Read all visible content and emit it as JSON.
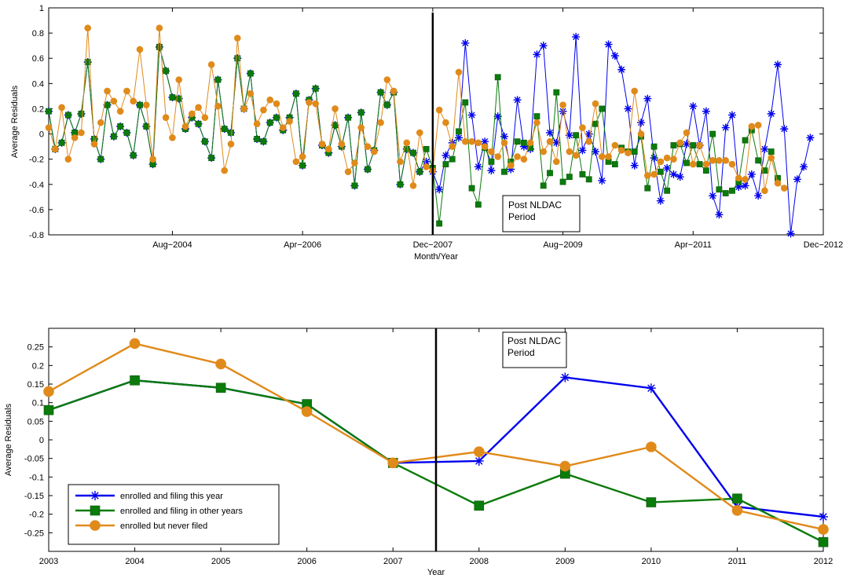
{
  "chart_data": [
    {
      "type": "line",
      "xlabel": "Month/Year",
      "ylabel": "Average Residuals",
      "ylim": [
        -0.8,
        1
      ],
      "yticks": [
        "-0.8",
        "-0.6",
        "-0.4",
        "-0.2",
        "0",
        "0.2",
        "0.4",
        "0.6",
        "0.8",
        "1"
      ],
      "x_range_months": [
        "2003-01",
        "2012-12"
      ],
      "xticks": [
        {
          "label": "Aug−2004",
          "month": "2004-08"
        },
        {
          "label": "Apr−2006",
          "month": "2006-04"
        },
        {
          "label": "Dec−2007",
          "month": "2007-12"
        },
        {
          "label": "Aug−2009",
          "month": "2009-08"
        },
        {
          "label": "Apr−2011",
          "month": "2011-04"
        },
        {
          "label": "Dec−2012",
          "month": "2012-12"
        }
      ],
      "vline_month": "2007-12",
      "annotation": [
        "Post NLDAC",
        "Period"
      ],
      "start_month": "2003-01",
      "series": [
        {
          "name": "enrolled and filing this year",
          "color": "#0000ee",
          "marker": "asterisk",
          "values": [
            0.18,
            -0.12,
            -0.07,
            0.15,
            0.01,
            0.16,
            0.57,
            -0.04,
            -0.2,
            0.23,
            -0.02,
            0.06,
            0.01,
            -0.17,
            0.23,
            0.06,
            -0.24,
            0.69,
            0.5,
            0.29,
            0.28,
            0.04,
            0.13,
            0.08,
            -0.06,
            -0.19,
            0.43,
            0.04,
            0.01,
            0.6,
            0.2,
            0.48,
            -0.04,
            -0.06,
            0.09,
            0.13,
            0.03,
            0.13,
            0.32,
            -0.25,
            0.27,
            0.36,
            -0.09,
            -0.15,
            0.07,
            -0.1,
            0.13,
            -0.41,
            0.17,
            -0.28,
            -0.13,
            0.33,
            0.23,
            0.33,
            -0.4,
            -0.12,
            -0.15,
            -0.3,
            -0.22,
            -0.3,
            -0.44,
            -0.17,
            -0.07,
            -0.03,
            0.72,
            0.15,
            -0.26,
            -0.06,
            -0.29,
            0.14,
            -0.02,
            -0.28,
            0.27,
            -0.1,
            -0.12,
            0.63,
            0.7,
            0.01,
            -0.07,
            0.18,
            -0.01,
            0.77,
            -0.13,
            0.0,
            -0.14,
            -0.37,
            0.71,
            0.62,
            0.51,
            0.2,
            -0.25,
            0.09,
            0.28,
            -0.19,
            -0.53,
            -0.27,
            -0.32,
            -0.34,
            -0.08,
            0.22,
            -0.09,
            0.18,
            -0.49,
            -0.64,
            0.05,
            0.15,
            -0.42,
            -0.41,
            -0.32,
            -0.49,
            -0.12,
            0.16,
            0.55,
            0.04,
            -0.79,
            -0.36,
            -0.26,
            -0.03
          ]
        },
        {
          "name": "enrolled and filing in other years",
          "color": "#0b7b0b",
          "marker": "square",
          "values": [
            0.18,
            -0.12,
            -0.07,
            0.15,
            0.01,
            0.16,
            0.57,
            -0.04,
            -0.2,
            0.23,
            -0.02,
            0.06,
            0.01,
            -0.17,
            0.23,
            0.06,
            -0.24,
            0.69,
            0.5,
            0.29,
            0.28,
            0.04,
            0.13,
            0.08,
            -0.06,
            -0.19,
            0.43,
            0.04,
            0.01,
            0.6,
            0.2,
            0.48,
            -0.04,
            -0.06,
            0.09,
            0.13,
            0.03,
            0.13,
            0.32,
            -0.25,
            0.27,
            0.36,
            -0.09,
            -0.15,
            0.07,
            -0.1,
            0.13,
            -0.41,
            0.17,
            -0.28,
            -0.13,
            0.33,
            0.23,
            0.33,
            -0.4,
            -0.12,
            -0.15,
            -0.3,
            -0.12,
            -0.27,
            -0.71,
            -0.24,
            -0.2,
            0.02,
            0.25,
            -0.43,
            -0.56,
            -0.11,
            -0.22,
            0.45,
            -0.3,
            -0.22,
            -0.06,
            -0.07,
            -0.11,
            0.14,
            -0.41,
            -0.31,
            0.33,
            -0.38,
            -0.34,
            -0.01,
            -0.32,
            -0.36,
            0.08,
            0.2,
            -0.22,
            -0.24,
            -0.11,
            -0.14,
            -0.14,
            -0.02,
            -0.43,
            -0.1,
            -0.3,
            -0.45,
            -0.09,
            -0.08,
            -0.23,
            -0.09,
            -0.24,
            -0.29,
            0.0,
            -0.44,
            -0.47,
            -0.45,
            -0.38,
            -0.05,
            0.03,
            -0.21,
            -0.29,
            -0.14,
            -0.35
          ]
        },
        {
          "name": "enrolled but never filed",
          "color": "#e08a1a",
          "marker": "circle",
          "values": [
            0.05,
            -0.12,
            0.21,
            -0.2,
            -0.03,
            0.01,
            0.84,
            -0.08,
            0.09,
            0.34,
            0.26,
            0.18,
            0.34,
            0.26,
            0.67,
            0.23,
            -0.2,
            0.84,
            0.13,
            -0.03,
            0.43,
            0.06,
            0.16,
            0.21,
            0.13,
            0.55,
            0.22,
            -0.29,
            -0.08,
            0.76,
            0.2,
            0.32,
            0.08,
            0.19,
            0.27,
            0.24,
            0.05,
            0.1,
            -0.22,
            -0.18,
            0.25,
            0.24,
            -0.08,
            -0.12,
            0.2,
            -0.08,
            -0.3,
            -0.23,
            0.05,
            -0.1,
            -0.14,
            0.09,
            0.43,
            0.34,
            -0.22,
            -0.07,
            -0.41,
            0.01,
            -0.26,
            -0.29,
            0.19,
            0.09,
            -0.1,
            0.49,
            -0.06,
            -0.06,
            -0.07,
            -0.1,
            -0.14,
            -0.18,
            -0.07,
            -0.25,
            -0.18,
            -0.2,
            -0.07,
            0.09,
            -0.14,
            -0.06,
            -0.22,
            0.23,
            -0.14,
            -0.17,
            0.05,
            -0.06,
            0.24,
            -0.18,
            -0.18,
            -0.09,
            -0.13,
            -0.15,
            0.34,
            0.0,
            -0.33,
            -0.32,
            -0.22,
            -0.19,
            -0.2,
            -0.07,
            0.01,
            -0.24,
            -0.09,
            -0.24,
            -0.21,
            -0.21,
            -0.21,
            -0.24,
            -0.35,
            -0.36,
            0.06,
            0.07,
            -0.45,
            -0.19,
            -0.39,
            -0.43
          ]
        }
      ]
    },
    {
      "type": "line",
      "xlabel": "Year",
      "ylabel": "Average Residuals",
      "ylim": [
        -0.3,
        0.3
      ],
      "yticks": [
        "-0.25",
        "-0.2",
        "-0.15",
        "-0.1",
        "-0.05",
        "0",
        "0.05",
        "0.1",
        "0.15",
        "0.2",
        "0.25"
      ],
      "categories": [
        "2003",
        "2004",
        "2005",
        "2006",
        "2007",
        "2008",
        "2009",
        "2010",
        "2011",
        "2012"
      ],
      "vline_x": 2007.5,
      "annotation": [
        "Post NLDAC",
        "Period"
      ],
      "legend_position": "bottom-left",
      "series": [
        {
          "name": "enrolled and filing this year",
          "color": "#0000ee",
          "marker": "asterisk",
          "values": [
            0.08,
            0.16,
            0.14,
            0.096,
            -0.062,
            -0.057,
            0.168,
            0.139,
            -0.18,
            -0.207
          ]
        },
        {
          "name": "enrolled and filing in other years",
          "color": "#0b7b0b",
          "marker": "square",
          "values": [
            0.08,
            0.16,
            0.14,
            0.096,
            -0.062,
            -0.177,
            -0.091,
            -0.168,
            -0.158,
            -0.275
          ]
        },
        {
          "name": "enrolled but never filed",
          "color": "#e08a1a",
          "marker": "circle",
          "values": [
            0.13,
            0.259,
            0.204,
            0.076,
            -0.062,
            -0.032,
            -0.071,
            -0.019,
            -0.19,
            -0.241
          ]
        }
      ]
    }
  ]
}
